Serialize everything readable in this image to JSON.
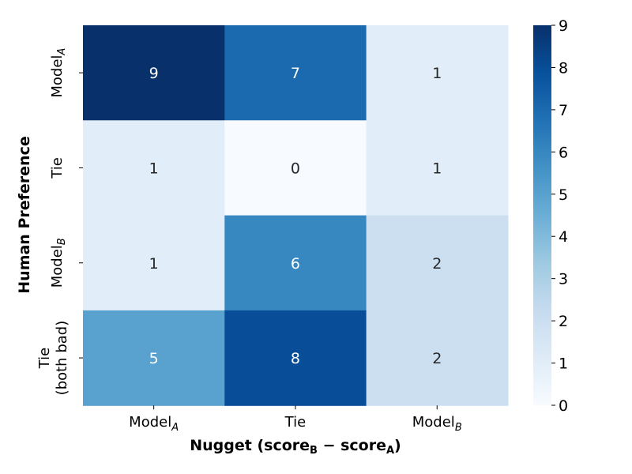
{
  "chart_data": {
    "type": "heatmap",
    "xlabel": {
      "main": "Nugget (score",
      "sub_b": "B",
      "minus": " − score",
      "sub_a": "A",
      "close": ")"
    },
    "ylabel": "Human Preference",
    "x_categories": [
      {
        "base": "Model",
        "sub": "A"
      },
      {
        "base": "Tie",
        "sub": ""
      },
      {
        "base": "Model",
        "sub": "B"
      }
    ],
    "y_categories": [
      {
        "lines": [
          "Model"
        ],
        "sub": "A"
      },
      {
        "lines": [
          "Tie"
        ],
        "sub": ""
      },
      {
        "lines": [
          "Model"
        ],
        "sub": "B"
      },
      {
        "lines": [
          "Tie",
          "(both bad)"
        ],
        "sub": ""
      }
    ],
    "values": [
      [
        9,
        7,
        1
      ],
      [
        1,
        0,
        1
      ],
      [
        1,
        6,
        2
      ],
      [
        5,
        8,
        2
      ]
    ],
    "colorbar": {
      "min": 0,
      "max": 9,
      "ticks": [
        0,
        1,
        2,
        3,
        4,
        5,
        6,
        7,
        8,
        9
      ],
      "colormap": "Blues"
    },
    "colors": {
      "low": "#f7fbff",
      "high": "#08306b"
    }
  }
}
